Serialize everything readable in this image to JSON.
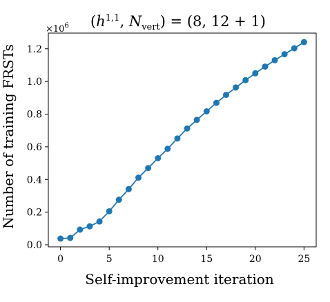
{
  "chart_data": {
    "type": "line",
    "title": "(h^{1,1}, N_vert) = (8, 12 + 1)",
    "title_parts": {
      "open": "(",
      "h": "h",
      "h_sup": "1,1",
      "comma": ", ",
      "N": "N",
      "N_sub": "vert",
      "rest": ") = (8, 12 + 1)"
    },
    "xlabel": "Self-improvement iteration",
    "ylabel": "Number of training FRSTs",
    "y_offset_text": {
      "base": "×10",
      "exp": "6"
    },
    "xlim": [
      -1.25,
      26.25
    ],
    "ylim": [
      -0.0125,
      1.2961
    ],
    "xticks": [
      0,
      5,
      10,
      15,
      20,
      25
    ],
    "xtick_labels": [
      "0",
      "5",
      "10",
      "15",
      "20",
      "25"
    ],
    "yticks": [
      0.0,
      0.2,
      0.4,
      0.6,
      0.8,
      1.0,
      1.2
    ],
    "ytick_labels": [
      "0.0",
      "0.2",
      "0.4",
      "0.6",
      "0.8",
      "1.0",
      "1.2"
    ],
    "grid": false,
    "series": [
      {
        "color": "#1f77b4",
        "marker": "circle",
        "x": [
          0,
          1,
          2,
          3,
          4,
          5,
          6,
          7,
          8,
          9,
          10,
          11,
          12,
          13,
          14,
          15,
          16,
          17,
          18,
          19,
          20,
          21,
          22,
          23,
          24,
          25
        ],
        "y": [
          0.038,
          0.042,
          0.093,
          0.113,
          0.143,
          0.205,
          0.276,
          0.341,
          0.411,
          0.47,
          0.53,
          0.588,
          0.651,
          0.712,
          0.765,
          0.817,
          0.869,
          0.918,
          0.963,
          1.008,
          1.05,
          1.091,
          1.13,
          1.167,
          1.203,
          1.241
        ]
      }
    ]
  }
}
